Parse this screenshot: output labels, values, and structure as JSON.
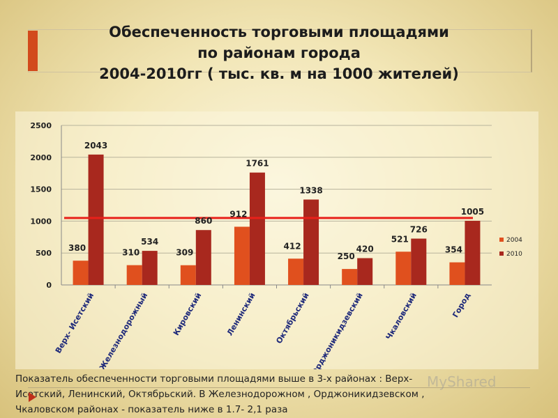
{
  "slide": {
    "title_line1": "Обеспеченность торговыми площадями",
    "title_line2": "по районам города",
    "title_line3": "2004-2010гг  ( тыс. кв. м на 1000 жителей)",
    "caption_line1": "Показатель обеспеченности торговыми площадями выше в 3-х районах : Верх-",
    "caption_line2": "Исетский, Ленинский, Октябрьский.  В Железнодорожном , Орджоникидзевском ,",
    "caption_line3": "Чкаловском районах  - показатель ниже  в 1.7- 2,1 раза",
    "watermark": "MyShared",
    "accent_color": "#d24a1c"
  },
  "chart_data": {
    "type": "bar",
    "categories": [
      "Верх- Исетский",
      "Железнодорожный",
      "Кировский",
      "Ленинский",
      "Октябрьский",
      "Орджоникидзевский",
      "Чкаловский",
      "Город"
    ],
    "series": [
      {
        "name": "2004",
        "values": [
          380,
          310,
          309,
          912,
          412,
          250,
          521,
          354
        ],
        "color": "#e0501e"
      },
      {
        "name": "2010",
        "values": [
          2043,
          534,
          860,
          1761,
          1338,
          420,
          726,
          1005
        ],
        "color": "#a8281e"
      }
    ],
    "reference_line": {
      "value": 1050,
      "color": "#e8201a"
    },
    "ylim": [
      0,
      2500
    ],
    "yticks": [
      0,
      500,
      1000,
      1500,
      2000,
      2500
    ],
    "grid": true,
    "legend_position": "right"
  }
}
